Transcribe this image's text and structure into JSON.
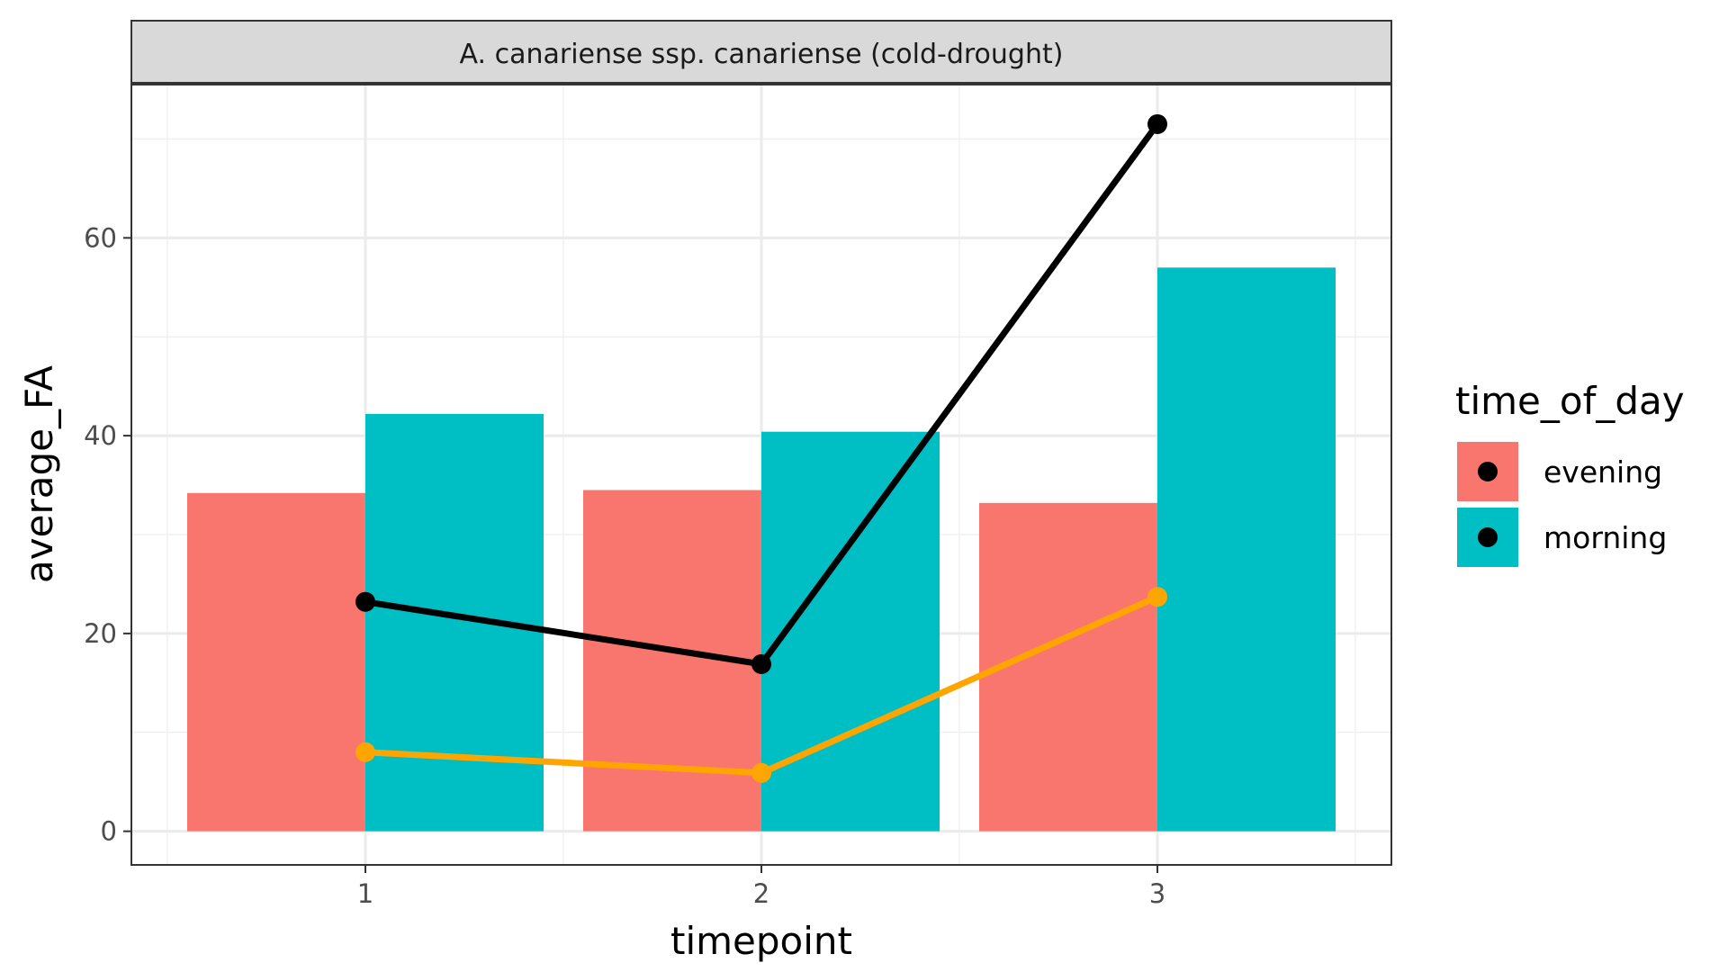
{
  "chart_data": {
    "type": "bar",
    "facet_title": "A. canariense ssp. canariense (cold-drought)",
    "xlabel": "timepoint",
    "ylabel": "average_FA",
    "categories": [
      "1",
      "2",
      "3"
    ],
    "ylim": [
      -3.4,
      75.5
    ],
    "yticks": [
      0,
      20,
      40,
      60
    ],
    "grid": true,
    "bar_series": [
      {
        "name": "evening",
        "color": "#F8766D",
        "values": [
          34.2,
          34.5,
          33.2
        ]
      },
      {
        "name": "morning",
        "color": "#00BFC4",
        "values": [
          42.2,
          40.4,
          57.0
        ]
      }
    ],
    "line_series": [
      {
        "color": "#000000",
        "values": [
          23.2,
          16.9,
          71.5
        ]
      },
      {
        "color": "#FFA500",
        "values": [
          8.0,
          5.9,
          23.7
        ]
      }
    ],
    "legend": {
      "title": "time_of_day",
      "placement": "right",
      "entries": [
        "evening",
        "morning"
      ]
    }
  }
}
